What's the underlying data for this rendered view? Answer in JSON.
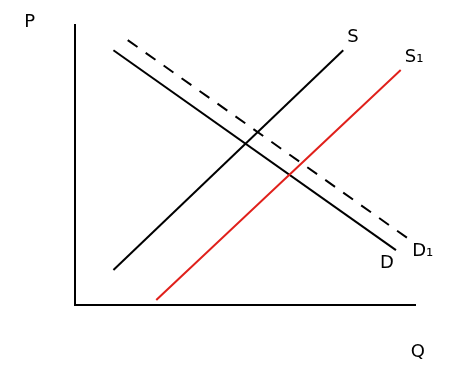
{
  "chart_data": {
    "type": "line",
    "x_label": "Q",
    "y_label": "P",
    "xlim": [
      0,
      10
    ],
    "ylim": [
      0,
      10
    ],
    "tick_labels": false,
    "grid": false,
    "series": [
      {
        "name": "S",
        "color": "#000000",
        "line_style": "solid",
        "x": [
          1.13,
          7.89
        ],
        "values": [
          1.25,
          9.1
        ]
      },
      {
        "name": "S₁",
        "color": "#e0201b",
        "line_style": "solid",
        "x": [
          2.39,
          9.58
        ],
        "values": [
          0.18,
          8.39
        ]
      },
      {
        "name": "D",
        "color": "#000000",
        "line_style": "solid",
        "x": [
          1.13,
          9.44
        ],
        "values": [
          9.1,
          1.96
        ]
      },
      {
        "name": "D₁",
        "color": "#000000",
        "line_style": "dashed",
        "x": [
          1.55,
          9.86
        ],
        "values": [
          9.46,
          2.32
        ]
      }
    ]
  }
}
